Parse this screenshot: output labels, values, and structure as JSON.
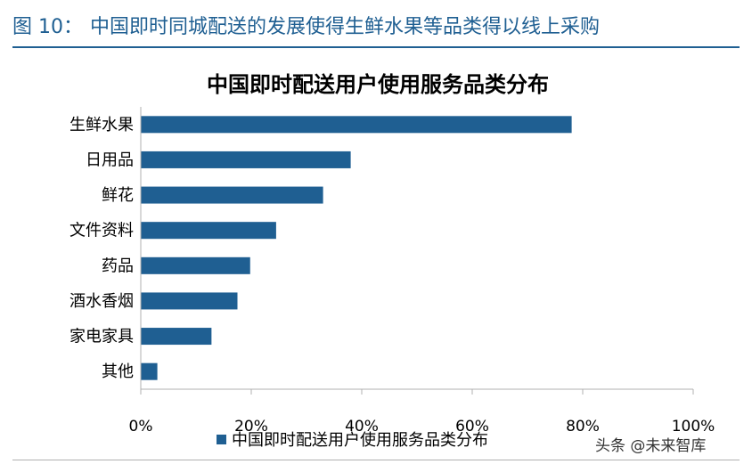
{
  "figure": {
    "label": "图 10：",
    "heading": "中国即时同城配送的发展使得生鲜水果等品类得以线上采购"
  },
  "watermark": "头条 @未来智库",
  "colors": {
    "bar": "#1f5f92",
    "heading": "#1f5f92",
    "axis": "#b0b0b0"
  },
  "chart_data": {
    "type": "bar",
    "orientation": "horizontal",
    "title": "中国即时配送用户使用服务品类分布",
    "categories": [
      "生鲜水果",
      "日用品",
      "鲜花",
      "文件资料",
      "药品",
      "酒水香烟",
      "家电家具",
      "其他"
    ],
    "series": [
      {
        "name": "中国即时配送用户使用服务品类分布",
        "values": [
          0.78,
          0.38,
          0.33,
          0.245,
          0.198,
          0.175,
          0.128,
          0.03
        ]
      }
    ],
    "x_ticks": [
      "0%",
      "20%",
      "40%",
      "60%",
      "80%",
      "100%"
    ],
    "xlim": [
      0,
      1
    ],
    "grid": false,
    "legend": "bottom"
  }
}
